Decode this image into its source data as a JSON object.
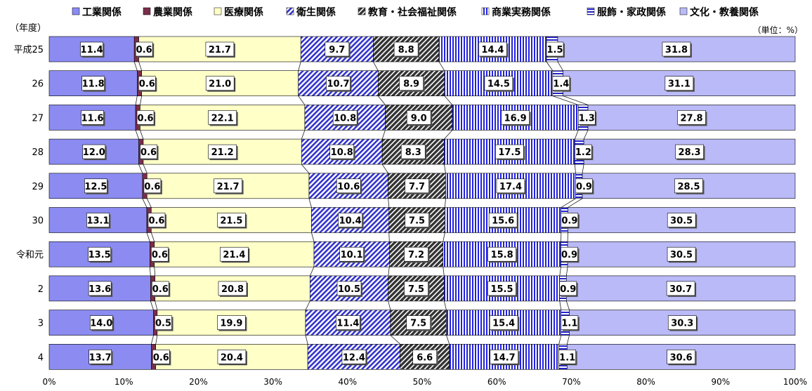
{
  "chart_data": {
    "type": "bar",
    "orientation": "horizontal",
    "stacked": "percent",
    "title": "",
    "y_axis_title": "（年度）",
    "unit_note": "（単位：%）",
    "categories": [
      "平成25",
      "26",
      "27",
      "28",
      "29",
      "30",
      "令和元",
      "2",
      "3",
      "4"
    ],
    "series": [
      {
        "name": "工業関係",
        "color": "#8b8bf2",
        "pattern": "solid",
        "values": [
          11.4,
          11.8,
          11.6,
          12.0,
          12.5,
          13.1,
          13.5,
          13.6,
          14.0,
          13.7
        ]
      },
      {
        "name": "農業関係",
        "color": "#7a2e4a",
        "pattern": "solid",
        "values": [
          0.6,
          0.6,
          0.6,
          0.6,
          0.6,
          0.6,
          0.6,
          0.6,
          0.5,
          0.6
        ]
      },
      {
        "name": "医療関係",
        "color": "#ffffc8",
        "pattern": "solid",
        "values": [
          21.7,
          21.0,
          22.1,
          21.2,
          21.7,
          21.5,
          21.4,
          20.8,
          19.9,
          20.4
        ]
      },
      {
        "name": "衛生関係",
        "color": "#3333cc",
        "pattern": "diag-blue",
        "values": [
          9.7,
          10.7,
          10.8,
          10.8,
          10.6,
          10.4,
          10.1,
          10.5,
          11.4,
          12.4
        ]
      },
      {
        "name": "教育・社会福祉関係",
        "color": "#333333",
        "pattern": "diag-black",
        "values": [
          8.8,
          8.9,
          9.0,
          8.3,
          7.7,
          7.5,
          7.2,
          7.5,
          7.5,
          6.6
        ]
      },
      {
        "name": "商業実務関係",
        "color": "#2222dd",
        "pattern": "vert-blue",
        "values": [
          14.4,
          14.5,
          16.9,
          17.5,
          17.4,
          15.6,
          15.8,
          15.5,
          15.4,
          14.7
        ]
      },
      {
        "name": "服飾・家政関係",
        "color": "#2222cc",
        "pattern": "horiz-blue",
        "values": [
          1.5,
          1.4,
          1.3,
          1.2,
          0.9,
          0.9,
          0.9,
          0.9,
          1.1,
          1.1
        ]
      },
      {
        "name": "文化・教養関係",
        "color": "#babaf8",
        "pattern": "solid",
        "values": [
          31.8,
          31.1,
          27.8,
          28.3,
          28.5,
          30.5,
          30.5,
          30.7,
          30.3,
          30.6
        ]
      }
    ],
    "x_ticks": [
      "0%",
      "10%",
      "20%",
      "30%",
      "40%",
      "50%",
      "60%",
      "70%",
      "80%",
      "90%",
      "100%"
    ],
    "xlim": [
      0,
      100
    ],
    "grid": false,
    "legend_position": "top",
    "series_lines": true
  }
}
